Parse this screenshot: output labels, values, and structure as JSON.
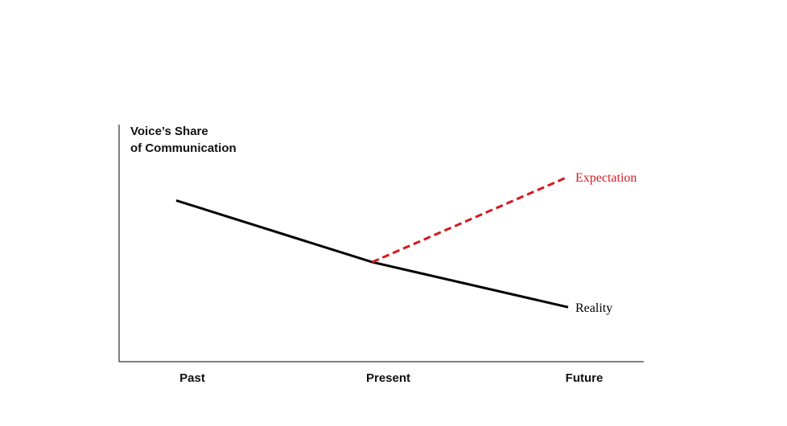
{
  "chart_data": {
    "type": "line",
    "y_label": [
      "Voice’s Share",
      "of Communication"
    ],
    "categories": [
      "Past",
      "Present",
      "Future"
    ],
    "ylim": [
      0,
      100
    ],
    "series": [
      {
        "name": "Reality",
        "color": "#000000",
        "dashed": false,
        "values": [
          68,
          42,
          23
        ]
      },
      {
        "name": "Expectation",
        "color": "#d71920",
        "dashed": true,
        "values": [
          null,
          42,
          78
        ]
      }
    ]
  }
}
